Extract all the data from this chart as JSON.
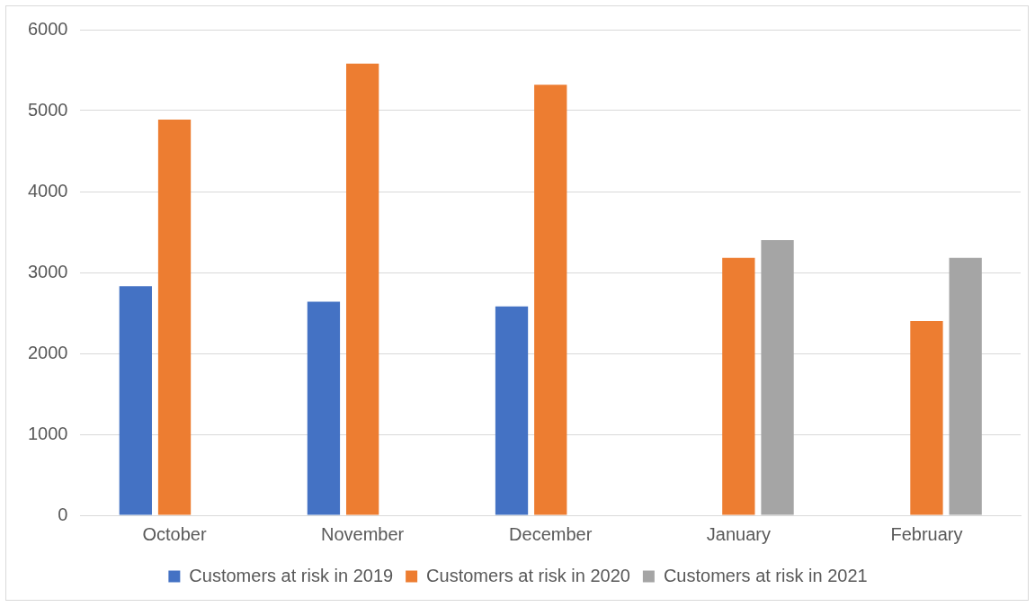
{
  "chart_data": {
    "type": "bar",
    "categories": [
      "October",
      "November",
      "December",
      "January",
      "February"
    ],
    "series": [
      {
        "name": "Customers at risk in 2019",
        "color": "#4472c4",
        "values": [
          2830,
          2640,
          2580,
          null,
          null
        ]
      },
      {
        "name": "Customers at risk in 2020",
        "color": "#ed7d31",
        "values": [
          4890,
          5580,
          5320,
          3180,
          2400
        ]
      },
      {
        "name": "Customers at risk in 2021",
        "color": "#a5a5a5",
        "values": [
          null,
          null,
          null,
          3400,
          3180
        ]
      }
    ],
    "ylim": [
      0,
      6000
    ],
    "yticks": [
      0,
      1000,
      2000,
      3000,
      4000,
      5000,
      6000
    ],
    "grid": "y",
    "legend": "bottom"
  }
}
